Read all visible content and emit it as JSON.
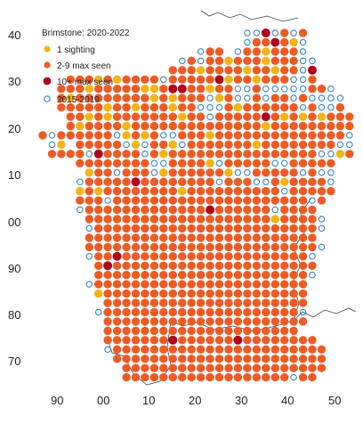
{
  "legend": {
    "title": "Brimstone:  2020-2022",
    "items": [
      {
        "label": "1 sighting",
        "kind": "filled",
        "color": "#f2b515"
      },
      {
        "label": "2-9 max seen",
        "kind": "filled",
        "color": "#ee5a24"
      },
      {
        "label": "10+ max seen",
        "kind": "filled",
        "color": "#b0001e"
      },
      {
        "label": "2015-2019",
        "kind": "open",
        "color": "#3a84c8"
      }
    ]
  },
  "y_ticks": [
    "40",
    "30",
    "20",
    "10",
    "00",
    "90",
    "80",
    "70"
  ],
  "x_ticks": [
    "90",
    "00",
    "10",
    "20",
    "30",
    "40",
    "50"
  ],
  "colors": {
    "one": "#f2b515",
    "few": "#ee5a24",
    "many": "#b0001e",
    "prev": "#3a84c8",
    "boundary": "#444444"
  },
  "grid": {
    "cols": 36,
    "rows": 55,
    "legend_note": "codes: 0=empty, 1=1 sighting, 2=2-9 max seen, 3=10+ max seen, o=2015-2019",
    "rows_data": [
      "......................oo3o2o2.......",
      "......................o22321o.......",
      ".................o22.o221222o.......",
      "...............o2o2212221222oo......",
      "..............22212222122122o3......",
      "...2221212222o2222231221222oo2......",
      "..2221222221123322122oo2ooooo22o....",
      "..2122222222121222o12oo2o22o2oooo...",
      "..222221221222122ooo21222222o2oo2...",
      "...221212222222122o222223212121222..",
      "...2122221222222222222221222222222o.",
      "2o222222o1212oo222122222222222222oo2",
      ".o1.22222o1o221o2222222122222222oo..",
      ".2222o32222o212222222222222222oo12..",
      "....22222222oo22221o22222oo22222....",
      ".....122o222o12222221oo22222o2oo....",
      "....o22222322222222o222oo212222o....",
      "....1212222222212222222222o22222....",
      "....222o222222222222222222222o2.....",
      "....o22222222222223222222o2222......",
      ".....2222222222222222222212222o.....",
      ".....o222222222222222222222222o.....",
      ".....2222222222222222222222222......",
      ".....2222222222222222222222222o.....",
      ".....o22322222222222222222222o......",
      "......232222222222222222222222......",
      "......22222222222222222222222o......",
      ".....o22222222222222222222222.......",
      "......12222222222222222222222.......",
      ".......2222222222222222222222.......",
      "......o222222222222222222222o.......",
      ".......2222222222222222222222.......",
      ".......222222222222222222222........",
      ".......22222223222222322222222......",
      ".......o22222222222222222222222.....",
      "........22222222222222222222222.....",
      ".........2222222222222222222222.....",
      ".........222222222222222222o22......",
      "........o22222222222222222222.......",
      "........222222222222222222222.......",
      "........22222222222222222222........",
      ".........22222222222222222..........",
      "........3222222222222222............",
      "........22222222222222..............",
      "........2222222222222...............",
      ".........22222222222................",
      "........o222222222..................",
      "..........22222.....................",
      "...........222......................",
      "....................................",
      "....................................",
      "....................................",
      "....................................",
      "....................................",
      "...................................."
    ]
  }
}
